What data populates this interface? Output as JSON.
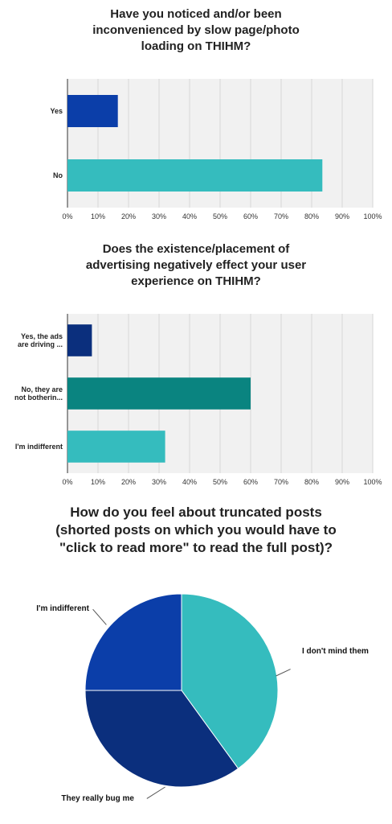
{
  "chart_data": [
    {
      "type": "bar",
      "orientation": "horizontal",
      "title_lines": [
        "Have you noticed and/or been",
        "inconvenienced by slow page/photo",
        "loading on THIHM?"
      ],
      "categories": [
        "Yes",
        "No"
      ],
      "values": [
        16.5,
        83.5
      ],
      "colors": [
        "#0b3ea9",
        "#35bcbe"
      ],
      "xlim": [
        0,
        100
      ],
      "xtick_labels": [
        "0%",
        "10%",
        "20%",
        "30%",
        "40%",
        "50%",
        "60%",
        "70%",
        "80%",
        "90%",
        "100%"
      ],
      "grid": true,
      "legend": "none"
    },
    {
      "type": "bar",
      "orientation": "horizontal",
      "title_lines": [
        "Does the existence/placement of",
        "advertising negatively effect your user",
        "experience on THIHM?"
      ],
      "categories": [
        [
          "Yes, the ads",
          "are driving ..."
        ],
        [
          "No, they are",
          "not botherin..."
        ],
        [
          "I'm indifferent"
        ]
      ],
      "values": [
        8,
        60,
        32
      ],
      "colors": [
        "#0b2f7d",
        "#0a8480",
        "#35bcbe"
      ],
      "xlim": [
        0,
        100
      ],
      "xtick_labels": [
        "0%",
        "10%",
        "20%",
        "30%",
        "40%",
        "50%",
        "60%",
        "70%",
        "80%",
        "90%",
        "100%"
      ],
      "grid": true,
      "legend": "none"
    },
    {
      "type": "pie",
      "title_lines": [
        "How do you feel about truncated posts",
        "(shorted posts on which you would have to",
        "\"click to read more\" to read the full post)?"
      ],
      "slices": [
        {
          "label": "I don't mind them",
          "value": 40,
          "color": "#35bcbe"
        },
        {
          "label": "They really bug me",
          "value": 35,
          "color": "#0b2f7d"
        },
        {
          "label": "I'm indifferent",
          "value": 25,
          "color": "#0b3ea9"
        }
      ],
      "legend": "labels with leader lines"
    }
  ]
}
